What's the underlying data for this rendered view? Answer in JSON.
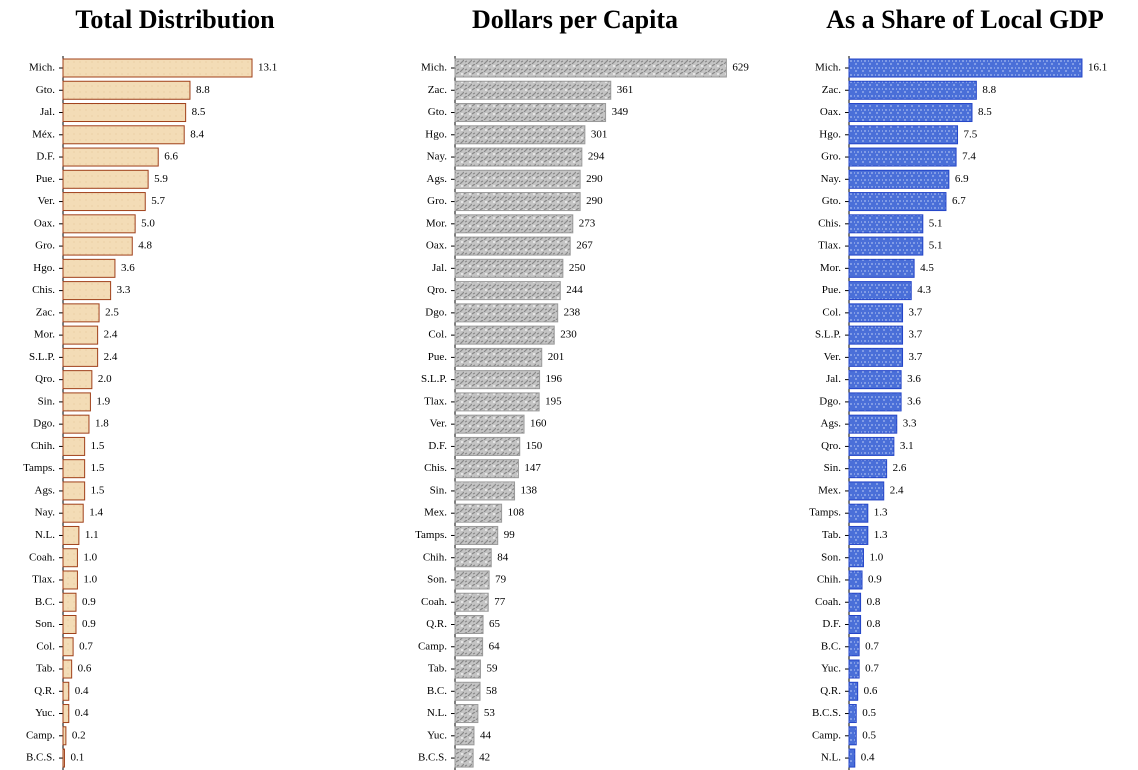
{
  "chart_data": [
    {
      "type": "barh",
      "title": "Total Distribution",
      "categories": [
        "Mich.",
        "Gto.",
        "Jal.",
        "Méx.",
        "D.F.",
        "Pue.",
        "Ver.",
        "Oax.",
        "Gro.",
        "Hgo.",
        "Chis.",
        "Zac.",
        "Mor.",
        "S.L.P.",
        "Qro.",
        "Sin.",
        "Dgo.",
        "Chih.",
        "Tamps.",
        "Ags.",
        "Nay.",
        "N.L.",
        "Coah.",
        "Tlax.",
        "B.C.",
        "Son.",
        "Col.",
        "Tab.",
        "Q.R.",
        "Yuc.",
        "Camp.",
        "B.C.S."
      ],
      "values": [
        13.1,
        8.8,
        8.5,
        8.4,
        6.6,
        5.9,
        5.7,
        5.0,
        4.8,
        3.6,
        3.3,
        2.5,
        2.4,
        2.4,
        2.0,
        1.9,
        1.8,
        1.5,
        1.5,
        1.5,
        1.4,
        1.1,
        1.0,
        1.0,
        0.9,
        0.9,
        0.7,
        0.6,
        0.4,
        0.4,
        0.2,
        0.1
      ],
      "value_labels": [
        "13.1",
        "8.8",
        "8.5",
        "8.4",
        "6.6",
        "5.9",
        "5.7",
        "5.0",
        "4.8",
        "3.6",
        "3.3",
        "2.5",
        "2.4",
        "2.4",
        "2.0",
        "1.9",
        "1.8",
        "1.5",
        "1.5",
        "1.5",
        "1.4",
        "1.1",
        "1.0",
        "1.0",
        "0.9",
        "0.9",
        "0.7",
        "0.6",
        "0.4",
        "0.4",
        "0.2",
        "0.1"
      ],
      "color": "#f3dcb6",
      "xlim": [
        0,
        14
      ]
    },
    {
      "type": "barh",
      "title": "Dollars per Capita",
      "categories": [
        "Mich.",
        "Zac.",
        "Gto.",
        "Hgo.",
        "Nay.",
        "Ags.",
        "Gro.",
        "Mor.",
        "Oax.",
        "Jal.",
        "Qro.",
        "Dgo.",
        "Col.",
        "Pue.",
        "S.L.P.",
        "Tlax.",
        "Ver.",
        "D.F.",
        "Chis.",
        "Sin.",
        "Mex.",
        "Tamps.",
        "Chih.",
        "Son.",
        "Coah.",
        "Q.R.",
        "Camp.",
        "Tab.",
        "B.C.",
        "N.L.",
        "Yuc.",
        "B.C.S."
      ],
      "values": [
        629,
        361,
        349,
        301,
        294,
        290,
        290,
        273,
        267,
        250,
        244,
        238,
        230,
        201,
        196,
        195,
        160,
        150,
        147,
        138,
        108,
        99,
        84,
        79,
        77,
        65,
        64,
        59,
        58,
        53,
        44,
        42
      ],
      "color": "#c4c4c4",
      "xlim": [
        0,
        700
      ]
    },
    {
      "type": "barh",
      "title": "As a Share of Local GDP",
      "categories": [
        "Mich.",
        "Zac.",
        "Oax.",
        "Hgo.",
        "Gro.",
        "Nay.",
        "Gto.",
        "Chis.",
        "Tlax.",
        "Mor.",
        "Pue.",
        "Col.",
        "S.L.P.",
        "Ver.",
        "Jal.",
        "Dgo.",
        "Ags.",
        "Qro.",
        "Sin.",
        "Mex.",
        "Tamps.",
        "Tab.",
        "Son.",
        "Chih.",
        "Coah.",
        "D.F.",
        "B.C.",
        "Yuc.",
        "Q.R.",
        "B.C.S.",
        "Camp.",
        "N.L."
      ],
      "values": [
        16.1,
        8.8,
        8.5,
        7.5,
        7.4,
        6.9,
        6.7,
        5.1,
        5.1,
        4.5,
        4.3,
        3.7,
        3.7,
        3.7,
        3.6,
        3.6,
        3.3,
        3.1,
        2.6,
        2.4,
        1.3,
        1.3,
        1.0,
        0.9,
        0.8,
        0.8,
        0.7,
        0.7,
        0.6,
        0.5,
        0.5,
        0.4
      ],
      "value_labels": [
        "16.1",
        "8.8",
        "8.5",
        "7.5",
        "7.4",
        "6.9",
        "6.7",
        "5.1",
        "5.1",
        "4.5",
        "4.3",
        "3.7",
        "3.7",
        "3.7",
        "3.6",
        "3.6",
        "3.3",
        "3.1",
        "2.6",
        "2.4",
        "1.3",
        "1.3",
        "1.0",
        "0.9",
        "0.8",
        "0.8",
        "0.7",
        "0.7",
        "0.6",
        "0.5",
        "0.5",
        "0.4"
      ],
      "color": "#4a6fd8",
      "xlim": [
        0,
        17
      ]
    }
  ]
}
